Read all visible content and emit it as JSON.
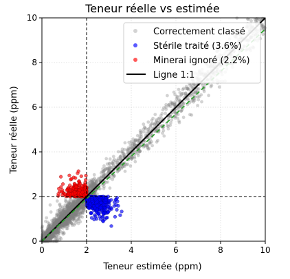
{
  "chart_data": {
    "type": "scatter",
    "title": "Teneur réelle vs estimée",
    "xlabel": "Teneur estimée (ppm)",
    "ylabel": "Teneur réelle (ppm)",
    "xlim": [
      0,
      10
    ],
    "ylim": [
      0,
      10
    ],
    "x_ticks": [
      "0",
      "2",
      "4",
      "6",
      "8",
      "10"
    ],
    "y_ticks": [
      "0",
      "2",
      "4",
      "6",
      "8",
      "10"
    ],
    "grid": true,
    "cutoff": 2,
    "legend_position": "top-right",
    "series": [
      {
        "name": "Correctement classé",
        "color": "#808080",
        "region": "along 1:1 line, x and y on same side of cutoff",
        "spread": 0.45,
        "x_range": [
          0,
          10
        ]
      },
      {
        "name": "Stérile traité (3.6%)",
        "color": "#0000ff",
        "region": "estimated >= 2, actual < 2",
        "x_range": [
          2.0,
          4.3
        ],
        "y_range": [
          0.6,
          2.0
        ]
      },
      {
        "name": "Minerai ignoré (2.2%)",
        "color": "#ff0000",
        "region": "estimated < 2, actual >= 2",
        "x_range": [
          0.2,
          2.0
        ],
        "y_range": [
          2.0,
          3.5
        ]
      }
    ],
    "lines": [
      {
        "name": "Ligne 1:1",
        "color": "#000000",
        "style": "solid",
        "from": [
          0,
          0
        ],
        "to": [
          10,
          10
        ]
      },
      {
        "name": "",
        "color": "#2ca02c",
        "style": "dashed",
        "from": [
          0,
          0
        ],
        "to": [
          10,
          9.5
        ]
      },
      {
        "name": "",
        "color": "#000000",
        "style": "dashed",
        "orientation": "vertical",
        "at": 2
      },
      {
        "name": "",
        "color": "#000000",
        "style": "dashed",
        "orientation": "horizontal",
        "at": 2
      }
    ]
  }
}
